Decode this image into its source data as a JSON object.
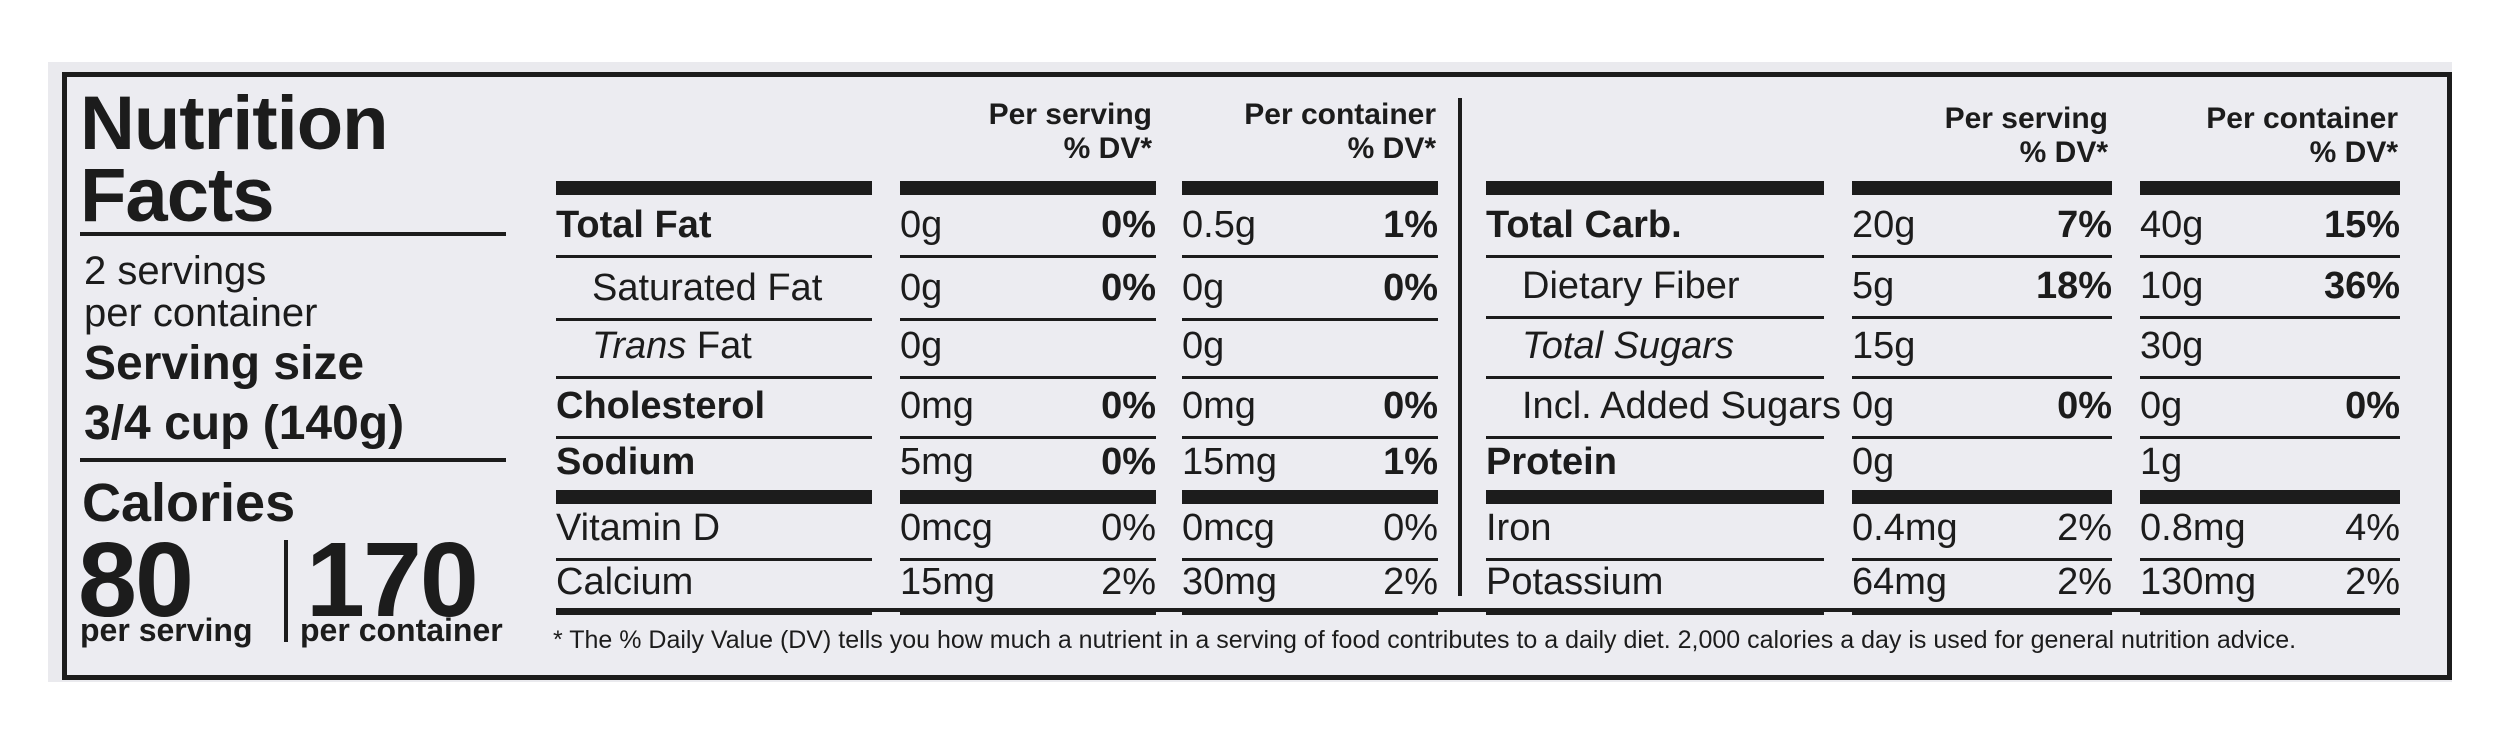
{
  "label": {
    "title_line1": "Nutrition",
    "title_line2": "Facts",
    "servings_line1": "2 servings",
    "servings_line2": "per container",
    "serving_size_label": "Serving size",
    "serving_size_value": "3/4 cup (140g)",
    "calories_label": "Calories",
    "calories_per_serving": "80",
    "calories_per_serving_label": "per serving",
    "calories_per_container": "170",
    "calories_per_container_label": "per container"
  },
  "headers": {
    "per_serving_line1": "Per serving",
    "per_container_line1": "Per container",
    "dv_line2": "% DV*"
  },
  "left_table": [
    {
      "name": "Total Fat",
      "bold": true,
      "indent": false,
      "italic_prefix": "",
      "serving_amt": "0g",
      "serving_dv": "0%",
      "container_amt": "0.5g",
      "container_dv": "1%"
    },
    {
      "name": "Saturated Fat",
      "bold": false,
      "indent": true,
      "italic_prefix": "",
      "serving_amt": "0g",
      "serving_dv": "0%",
      "container_amt": "0g",
      "container_dv": "0%"
    },
    {
      "name": " Fat",
      "bold": false,
      "indent": true,
      "italic_prefix": "Trans",
      "serving_amt": "0g",
      "serving_dv": "",
      "container_amt": "0g",
      "container_dv": ""
    },
    {
      "name": "Cholesterol",
      "bold": true,
      "indent": false,
      "italic_prefix": "",
      "serving_amt": "0mg",
      "serving_dv": "0%",
      "container_amt": "0mg",
      "container_dv": "0%"
    },
    {
      "name": "Sodium",
      "bold": true,
      "indent": false,
      "italic_prefix": "",
      "serving_amt": "5mg",
      "serving_dv": "0%",
      "container_amt": "15mg",
      "container_dv": "1%"
    },
    {
      "name": "Vitamin D",
      "bold": false,
      "indent": false,
      "italic_prefix": "",
      "serving_amt": "0mcg",
      "serving_dv": "0%",
      "container_amt": "0mcg",
      "container_dv": "0%"
    },
    {
      "name": "Calcium",
      "bold": false,
      "indent": false,
      "italic_prefix": "",
      "serving_amt": "15mg",
      "serving_dv": "2%",
      "container_amt": "30mg",
      "container_dv": "2%"
    }
  ],
  "right_table": [
    {
      "name": "Total Carb.",
      "bold": true,
      "indent": false,
      "italic": false,
      "serving_amt": "20g",
      "serving_dv": "7%",
      "container_amt": "40g",
      "container_dv": "15%"
    },
    {
      "name": "Dietary Fiber",
      "bold": false,
      "indent": true,
      "italic": false,
      "serving_amt": "5g",
      "serving_dv": "18%",
      "container_amt": "10g",
      "container_dv": "36%"
    },
    {
      "name": "Total Sugars",
      "bold": false,
      "indent": true,
      "italic": true,
      "serving_amt": "15g",
      "serving_dv": "",
      "container_amt": "30g",
      "container_dv": ""
    },
    {
      "name": "Incl. Added Sugars",
      "bold": false,
      "indent": true,
      "italic": false,
      "serving_amt": "0g",
      "serving_dv": "0%",
      "container_amt": "0g",
      "container_dv": "0%"
    },
    {
      "name": "Protein",
      "bold": true,
      "indent": false,
      "italic": false,
      "serving_amt": "0g",
      "serving_dv": "",
      "container_amt": "1g",
      "container_dv": ""
    },
    {
      "name": "Iron",
      "bold": false,
      "indent": false,
      "italic": false,
      "serving_amt": "0.4mg",
      "serving_dv": "2%",
      "container_amt": "0.8mg",
      "container_dv": "4%"
    },
    {
      "name": "Potassium",
      "bold": false,
      "indent": false,
      "italic": false,
      "serving_amt": "64mg",
      "serving_dv": "2%",
      "container_amt": "130mg",
      "container_dv": "2%"
    }
  ],
  "footnote": "* The % Daily Value (DV) tells you how much a nutrient in a serving of food contributes to a daily diet. 2,000 calories a day is used for general nutrition advice."
}
